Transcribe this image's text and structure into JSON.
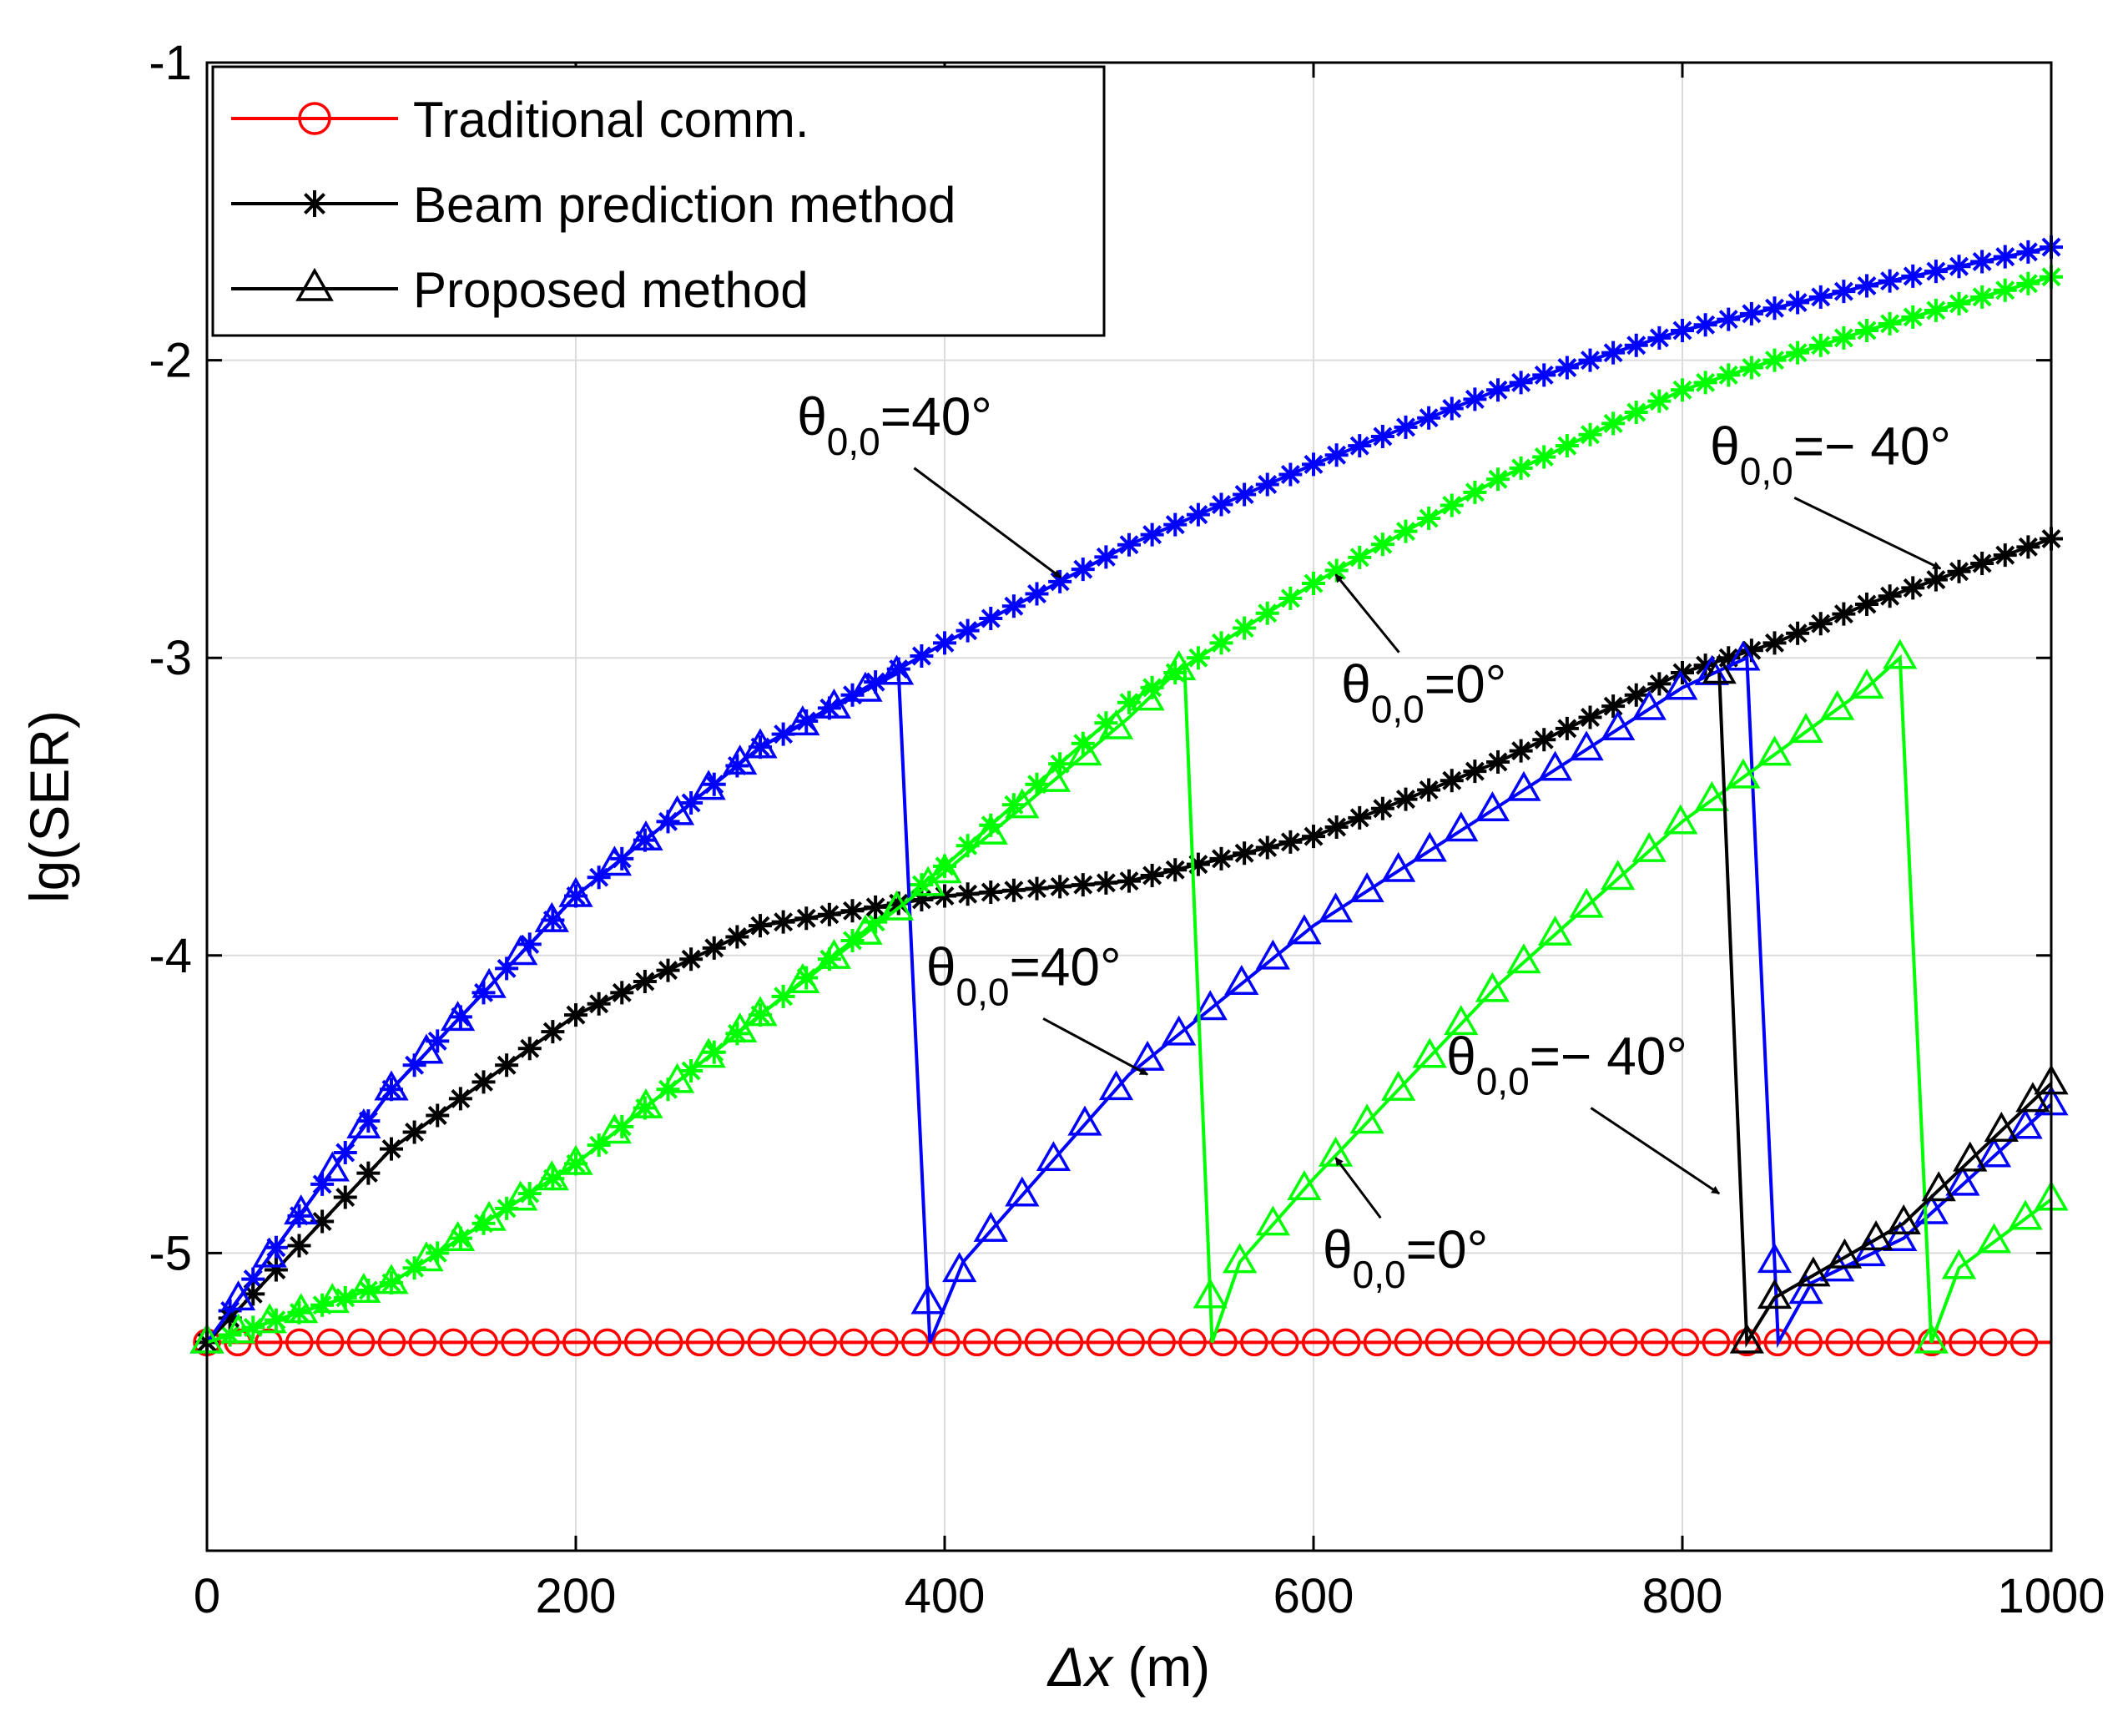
{
  "chart_data": {
    "type": "line",
    "title": "",
    "xlabel": "Δx (m)",
    "xlabel_symbol": "Δx",
    "xlabel_unit": "(m)",
    "ylabel": "lg(SER)",
    "xlim": [
      0,
      1000
    ],
    "ylim": [
      -6,
      -1
    ],
    "xticks": [
      0,
      200,
      400,
      600,
      800,
      1000
    ],
    "yticks": [
      -1,
      -2,
      -3,
      -4,
      -5
    ],
    "grid": true,
    "legend_position": "top-left",
    "legend": [
      {
        "label": "Traditional comm.",
        "marker": "circle",
        "color": "#ff0000"
      },
      {
        "label": "Beam prediction method",
        "marker": "asterisk",
        "color": "#000000"
      },
      {
        "label": "Proposed method",
        "marker": "triangle",
        "color": "#000000"
      }
    ],
    "series": [
      {
        "name": "Traditional comm.",
        "color": "#ff0000",
        "marker": "circle",
        "x_start": 0,
        "x_end": 1000,
        "x_step": 16.7,
        "value": -5.3
      },
      {
        "name": "Beam prediction method, θ0,0=40°",
        "color": "#0000ff",
        "marker": "asterisk",
        "points": [
          [
            0,
            -5.3
          ],
          [
            100,
            -4.45
          ],
          [
            200,
            -3.8
          ],
          [
            300,
            -3.3
          ],
          [
            400,
            -2.95
          ],
          [
            500,
            -2.62
          ],
          [
            600,
            -2.35
          ],
          [
            700,
            -2.1
          ],
          [
            800,
            -1.9
          ],
          [
            900,
            -1.75
          ],
          [
            1000,
            -1.62
          ]
        ]
      },
      {
        "name": "Beam prediction method, θ0,0=0°",
        "color": "#00ff00",
        "marker": "asterisk",
        "points": [
          [
            0,
            -5.3
          ],
          [
            100,
            -5.1
          ],
          [
            200,
            -4.7
          ],
          [
            300,
            -4.2
          ],
          [
            400,
            -3.7
          ],
          [
            500,
            -3.15
          ],
          [
            600,
            -2.75
          ],
          [
            700,
            -2.4
          ],
          [
            800,
            -2.1
          ],
          [
            900,
            -1.9
          ],
          [
            1000,
            -1.72
          ]
        ]
      },
      {
        "name": "Beam prediction method, θ0,0=−40°",
        "color": "#000000",
        "marker": "asterisk",
        "points": [
          [
            0,
            -5.3
          ],
          [
            100,
            -4.65
          ],
          [
            200,
            -4.2
          ],
          [
            300,
            -3.9
          ],
          [
            400,
            -3.8
          ],
          [
            500,
            -3.75
          ],
          [
            600,
            -3.6
          ],
          [
            700,
            -3.35
          ],
          [
            800,
            -3.05
          ],
          [
            850,
            -2.95
          ],
          [
            900,
            -2.82
          ],
          [
            1000,
            -2.6
          ]
        ]
      },
      {
        "name": "Proposed method, θ0,0=40°",
        "color": "#0000ff",
        "marker": "triangle",
        "points": [
          [
            0,
            -5.3
          ],
          [
            100,
            -4.45
          ],
          [
            200,
            -3.8
          ],
          [
            300,
            -3.3
          ],
          [
            375,
            -3.05
          ],
          [
            392,
            -5.3
          ],
          [
            410,
            -5.03
          ],
          [
            500,
            -4.4
          ],
          [
            600,
            -3.9
          ],
          [
            700,
            -3.5
          ],
          [
            800,
            -3.1
          ],
          [
            835,
            -3.0
          ],
          [
            852,
            -5.3
          ],
          [
            870,
            -5.1
          ],
          [
            920,
            -4.95
          ],
          [
            1000,
            -4.5
          ]
        ]
      },
      {
        "name": "Proposed method, θ0,0=0°",
        "color": "#00ff00",
        "marker": "triangle",
        "points": [
          [
            0,
            -5.3
          ],
          [
            100,
            -5.1
          ],
          [
            200,
            -4.7
          ],
          [
            300,
            -4.2
          ],
          [
            400,
            -3.72
          ],
          [
            500,
            -3.2
          ],
          [
            530,
            -3.02
          ],
          [
            545,
            -5.3
          ],
          [
            560,
            -5.03
          ],
          [
            600,
            -4.75
          ],
          [
            700,
            -4.1
          ],
          [
            800,
            -3.55
          ],
          [
            900,
            -3.1
          ],
          [
            918,
            -3.0
          ],
          [
            935,
            -5.3
          ],
          [
            950,
            -5.05
          ],
          [
            1000,
            -4.82
          ]
        ]
      },
      {
        "name": "Proposed method, θ0,0=−40°",
        "color": "#000000",
        "marker": "triangle",
        "points": [
          [
            820,
            -3.05
          ],
          [
            835,
            -5.3
          ],
          [
            850,
            -5.15
          ],
          [
            920,
            -4.9
          ],
          [
            1000,
            -4.43
          ]
        ]
      }
    ],
    "annotations": [
      {
        "base": "θ",
        "sub": "0,0",
        "value": "=40°",
        "x": 320,
        "y": -2.25,
        "arrow_to": [
          463,
          -2.73
        ]
      },
      {
        "base": "θ",
        "sub": "0,0",
        "value": "=0°",
        "x": 615,
        "y": -3.15,
        "arrow_to": [
          612,
          -2.72
        ]
      },
      {
        "base": "θ",
        "sub": "0,0",
        "value": "=− 40°",
        "x": 815,
        "y": -2.35,
        "arrow_to": [
          940,
          -2.7
        ]
      },
      {
        "base": "θ",
        "sub": "0,0",
        "value": "=40°",
        "x": 390,
        "y": -4.1,
        "arrow_to": [
          510,
          -4.4
        ]
      },
      {
        "base": "θ",
        "sub": "0,0",
        "value": "=− 40°",
        "x": 672,
        "y": -4.4,
        "arrow_to": [
          820,
          -4.8
        ]
      },
      {
        "base": "θ",
        "sub": "0,0",
        "value": "=0°",
        "x": 605,
        "y": -5.05,
        "arrow_to": [
          612,
          -4.68
        ]
      }
    ]
  }
}
